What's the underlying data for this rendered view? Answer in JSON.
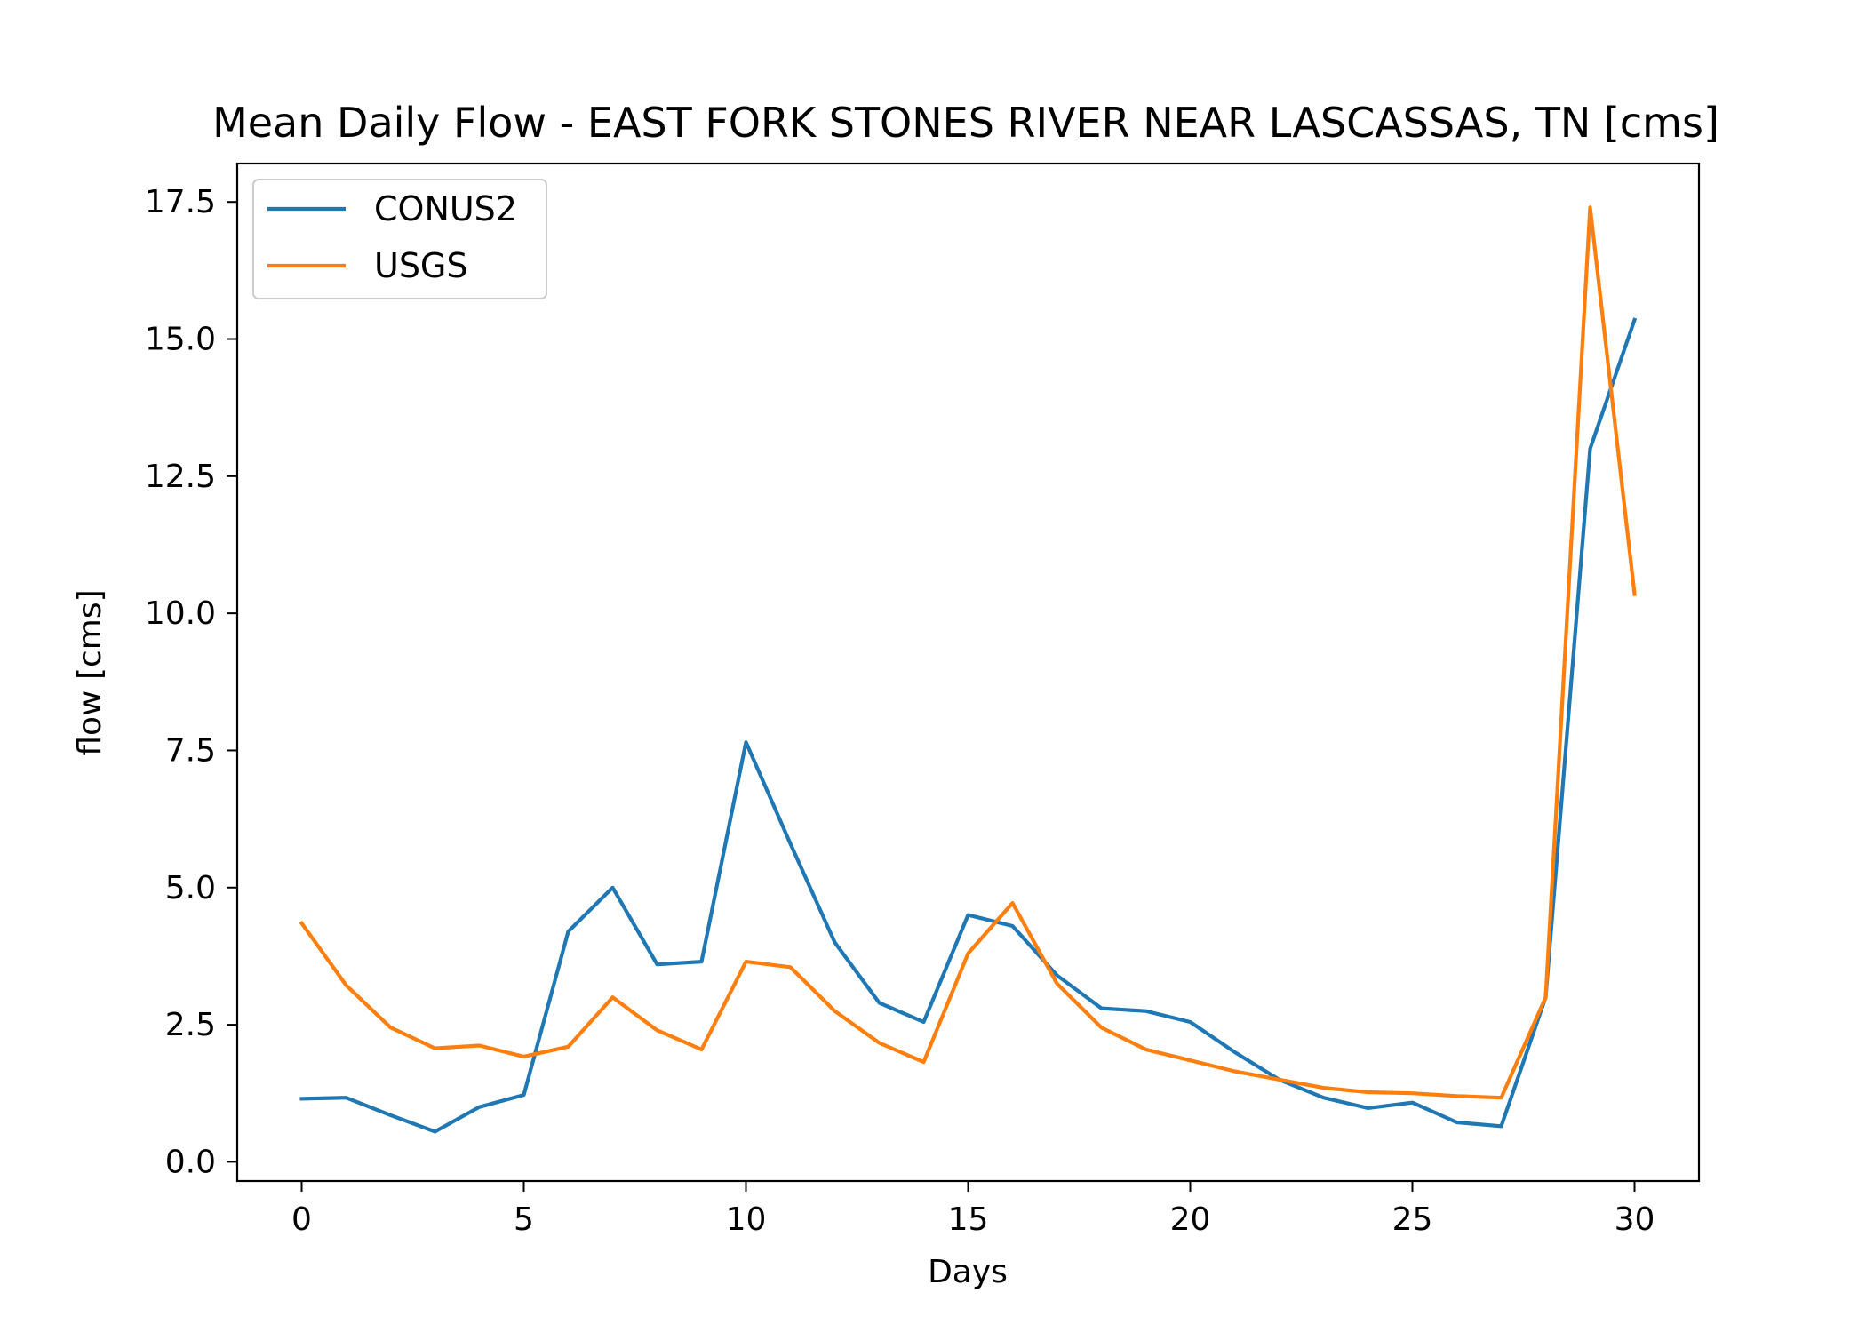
{
  "chart_data": {
    "type": "line",
    "title": "Mean Daily Flow - EAST FORK STONES RIVER NEAR LASCASSAS, TN [cms]",
    "xlabel": "Days",
    "ylabel": "flow [cms]",
    "xlim": [
      -1.45,
      31.45
    ],
    "ylim": [
      -0.35,
      18.2
    ],
    "x_ticks": [
      0,
      5,
      10,
      15,
      20,
      25,
      30
    ],
    "x_tick_labels": [
      "0",
      "5",
      "10",
      "15",
      "20",
      "25",
      "30"
    ],
    "y_ticks": [
      0.0,
      2.5,
      5.0,
      7.5,
      10.0,
      12.5,
      15.0,
      17.5
    ],
    "y_tick_labels": [
      "0.0",
      "2.5",
      "5.0",
      "7.5",
      "10.0",
      "12.5",
      "15.0",
      "17.5"
    ],
    "grid": false,
    "legend_position": "upper-left",
    "x": [
      0,
      1,
      2,
      3,
      4,
      5,
      6,
      7,
      8,
      9,
      10,
      11,
      12,
      13,
      14,
      15,
      16,
      17,
      18,
      19,
      20,
      21,
      22,
      23,
      24,
      25,
      26,
      27,
      28,
      29,
      30
    ],
    "series": [
      {
        "name": "CONUS2",
        "color": "#1f77b4",
        "values": [
          1.15,
          1.17,
          0.85,
          0.55,
          1.0,
          1.22,
          4.2,
          5.0,
          3.6,
          3.65,
          7.65,
          5.8,
          4.0,
          2.9,
          2.55,
          4.5,
          4.3,
          3.4,
          2.8,
          2.75,
          2.55,
          2.0,
          1.5,
          1.17,
          0.98,
          1.08,
          0.72,
          0.65,
          3.0,
          13.0,
          15.35
        ]
      },
      {
        "name": "USGS",
        "color": "#ff7f0e",
        "values": [
          4.35,
          3.22,
          2.45,
          2.07,
          2.12,
          1.92,
          2.1,
          3.0,
          2.4,
          2.05,
          3.65,
          3.55,
          2.75,
          2.17,
          1.82,
          3.8,
          4.72,
          3.25,
          2.45,
          2.05,
          1.85,
          1.65,
          1.5,
          1.35,
          1.27,
          1.25,
          1.2,
          1.17,
          3.0,
          17.4,
          10.35
        ]
      }
    ]
  }
}
